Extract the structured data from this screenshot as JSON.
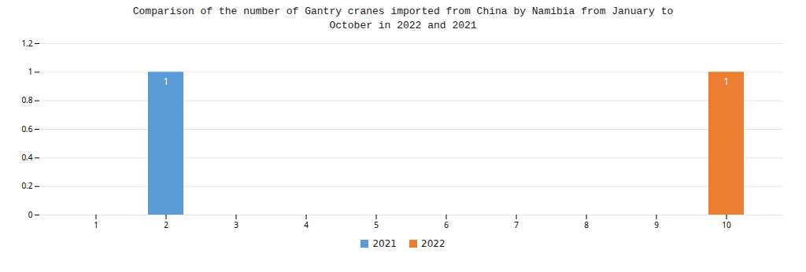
{
  "chart_data": {
    "type": "bar",
    "title": "Comparison of the number of Gantry cranes imported from China by Namibia from January to\nOctober in 2022 and 2021",
    "categories": [
      "1",
      "2",
      "3",
      "4",
      "5",
      "6",
      "7",
      "8",
      "9",
      "10"
    ],
    "series": [
      {
        "name": "2021",
        "color": "#5B9BD5",
        "values": [
          0,
          1,
          0,
          0,
          0,
          0,
          0,
          0,
          0,
          0
        ]
      },
      {
        "name": "2022",
        "color": "#ED7D31",
        "values": [
          0,
          0,
          0,
          0,
          0,
          0,
          0,
          0,
          0,
          1
        ]
      }
    ],
    "ylim": [
      0,
      1.2
    ],
    "yticks": [
      0,
      0.2,
      0.4,
      0.6,
      0.8,
      1,
      1.2
    ],
    "grid": true,
    "legend": "bottom",
    "data_labels": true
  }
}
